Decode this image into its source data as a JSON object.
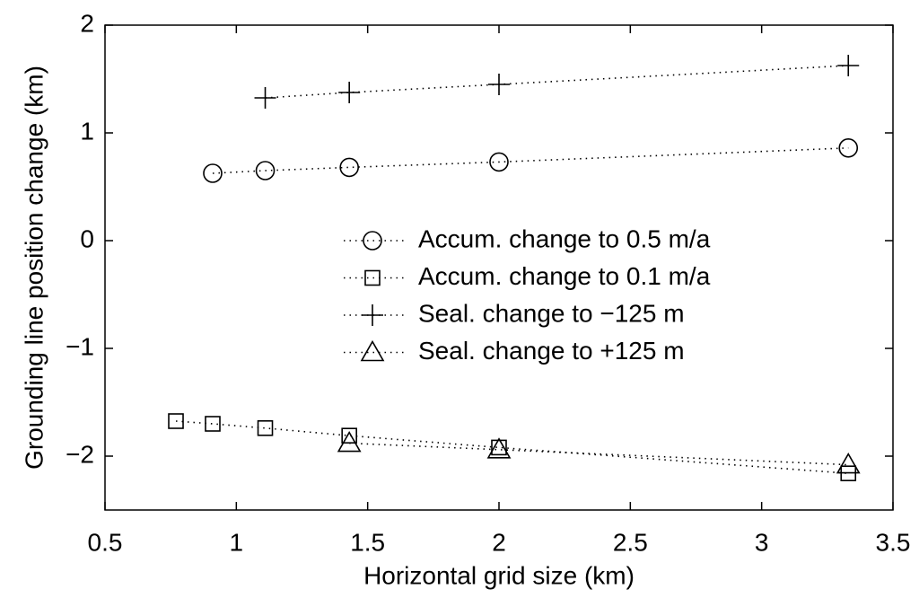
{
  "chart_data": {
    "type": "line",
    "xlabel": "Horizontal grid size (km)",
    "ylabel": "Grounding line position change (km)",
    "xlim": [
      0.5,
      3.5
    ],
    "xticks": [
      0.5,
      1,
      1.5,
      2,
      2.5,
      3,
      3.5
    ],
    "ylim": [
      -2.5,
      2
    ],
    "yticks": [
      {
        "value": -2,
        "label": "−2"
      },
      {
        "value": -1,
        "label": "−1"
      },
      0,
      1,
      2
    ],
    "line_style": "dotted",
    "series": [
      {
        "name": "Accum. change to 0.5 m/a",
        "color": "#000000",
        "marker": "circle",
        "x": [
          0.91,
          1.11,
          1.43,
          2.0,
          3.33
        ],
        "values": [
          0.625,
          0.65,
          0.68,
          0.73,
          0.86
        ]
      },
      {
        "name": "Accum. change to 0.1 m/a",
        "color": "#000000",
        "marker": "square",
        "x": [
          0.77,
          0.91,
          1.11,
          1.43,
          2.0,
          3.33
        ],
        "values": [
          -1.675,
          -1.7,
          -1.74,
          -1.81,
          -1.92,
          -2.16
        ]
      },
      {
        "name": "Seal. change to −125 m",
        "color": "#000000",
        "marker": "plus",
        "x": [
          1.11,
          1.43,
          2.0,
          3.33
        ],
        "values": [
          1.325,
          1.375,
          1.45,
          1.625
        ]
      },
      {
        "name": "Seal. change to +125 m",
        "color": "#000000",
        "marker": "triangle",
        "x": [
          1.43,
          2.0,
          3.33
        ],
        "values": [
          -1.88,
          -1.94,
          -2.08
        ]
      }
    ]
  }
}
